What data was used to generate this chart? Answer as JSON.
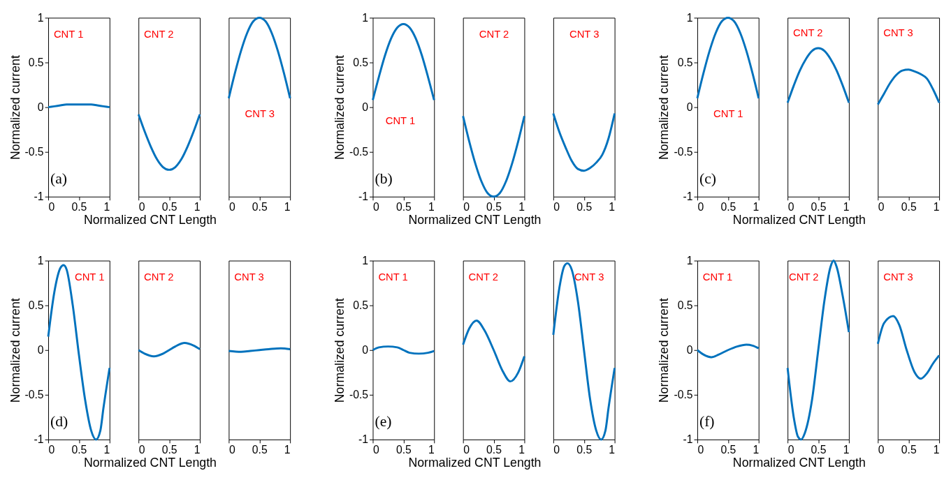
{
  "chart_data": [
    {
      "type": "line",
      "x": [
        0,
        0.1,
        0.2,
        0.3,
        0.4,
        0.5,
        0.6,
        0.7,
        0.8,
        0.9,
        1
      ],
      "values": [
        0,
        0.01,
        0.02,
        0.03,
        0.03,
        0.03,
        0.03,
        0.03,
        0.02,
        0.01,
        0
      ],
      "color": "#0072bd",
      "xlim": [
        0,
        1
      ],
      "ylim": [
        -1,
        1
      ],
      "xticks": [
        0,
        0.5,
        1
      ],
      "yticks": [
        -1,
        -0.5,
        0,
        0.5,
        1
      ],
      "ylabel": "Normalized current",
      "annotations": [
        "CNT 1",
        "(a)"
      ]
    },
    {
      "type": "line",
      "x": [
        0,
        0.1,
        0.2,
        0.3,
        0.4,
        0.5,
        0.6,
        0.7,
        0.8,
        0.9,
        1
      ],
      "values": [
        -0.08,
        -0.27,
        -0.44,
        -0.58,
        -0.67,
        -0.7,
        -0.67,
        -0.58,
        -0.44,
        -0.27,
        -0.08
      ],
      "color": "#0072bd",
      "xlim": [
        0,
        1
      ],
      "ylim": [
        -1,
        1
      ],
      "xticks": [
        0,
        0.5,
        1
      ],
      "tick_labels": "x",
      "xlabel": "Normalized CNT Length",
      "annotations": [
        "CNT 2"
      ]
    },
    {
      "type": "line",
      "x": [
        0,
        0.1,
        0.2,
        0.3,
        0.4,
        0.5,
        0.6,
        0.7,
        0.8,
        0.9,
        1
      ],
      "values": [
        0.1,
        0.38,
        0.63,
        0.83,
        0.96,
        1,
        0.96,
        0.83,
        0.63,
        0.38,
        0.1
      ],
      "color": "#0072bd",
      "xlim": [
        0,
        1
      ],
      "ylim": [
        -1,
        1
      ],
      "xticks": [
        0,
        0.5,
        1
      ],
      "tick_labels": "x",
      "annotations": [
        "CNT 3"
      ]
    },
    {
      "type": "line",
      "x": [
        0,
        0.1,
        0.2,
        0.3,
        0.4,
        0.5,
        0.6,
        0.7,
        0.8,
        0.9,
        1
      ],
      "values": [
        0.08,
        0.34,
        0.58,
        0.77,
        0.89,
        0.93,
        0.89,
        0.77,
        0.58,
        0.34,
        0.08
      ],
      "color": "#0072bd",
      "xlim": [
        0,
        1
      ],
      "ylim": [
        -1,
        1
      ],
      "xticks": [
        0,
        0.5,
        1
      ],
      "yticks": [
        -1,
        -0.5,
        0,
        0.5,
        1
      ],
      "ylabel": "Normalized current",
      "annotations": [
        "CNT 1",
        "(b)"
      ]
    },
    {
      "type": "line",
      "x": [
        0,
        0.1,
        0.2,
        0.3,
        0.4,
        0.5,
        0.6,
        0.7,
        0.8,
        0.9,
        1
      ],
      "values": [
        -0.1,
        -0.38,
        -0.63,
        -0.83,
        -0.96,
        -1,
        -0.96,
        -0.83,
        -0.63,
        -0.38,
        -0.1
      ],
      "color": "#0072bd",
      "xlim": [
        0,
        1
      ],
      "ylim": [
        -1,
        1
      ],
      "xticks": [
        0,
        0.5,
        1
      ],
      "tick_labels": "x",
      "xlabel": "Normalized CNT Length",
      "annotations": [
        "CNT 2"
      ]
    },
    {
      "type": "line",
      "x": [
        0,
        0.1,
        0.2,
        0.3,
        0.4,
        0.5,
        0.6,
        0.7,
        0.8,
        0.9,
        1
      ],
      "values": [
        -0.07,
        -0.28,
        -0.45,
        -0.6,
        -0.69,
        -0.71,
        -0.68,
        -0.62,
        -0.53,
        -0.35,
        -0.07
      ],
      "color": "#0072bd",
      "xlim": [
        0,
        1
      ],
      "ylim": [
        -1,
        1
      ],
      "xticks": [
        0,
        0.5,
        1
      ],
      "tick_labels": "x",
      "annotations": [
        "CNT 3"
      ]
    },
    {
      "type": "line",
      "x": [
        0,
        0.1,
        0.2,
        0.3,
        0.4,
        0.5,
        0.6,
        0.7,
        0.8,
        0.9,
        1
      ],
      "values": [
        0.1,
        0.38,
        0.63,
        0.83,
        0.96,
        1,
        0.96,
        0.83,
        0.63,
        0.38,
        0.1
      ],
      "color": "#0072bd",
      "xlim": [
        0,
        1
      ],
      "ylim": [
        -1,
        1
      ],
      "xticks": [
        0,
        0.5,
        1
      ],
      "yticks": [
        -1,
        -0.5,
        0,
        0.5,
        1
      ],
      "ylabel": "Normalized current",
      "annotations": [
        "CNT 1",
        "(c)"
      ]
    },
    {
      "type": "line",
      "x": [
        0,
        0.1,
        0.2,
        0.3,
        0.4,
        0.5,
        0.6,
        0.7,
        0.8,
        0.9,
        1
      ],
      "values": [
        0.05,
        0.24,
        0.41,
        0.54,
        0.63,
        0.66,
        0.63,
        0.54,
        0.41,
        0.24,
        0.05
      ],
      "color": "#0072bd",
      "xlim": [
        0,
        1
      ],
      "ylim": [
        -1,
        1
      ],
      "xticks": [
        0,
        0.5,
        1
      ],
      "tick_labels": "x",
      "xlabel": "Normalized CNT Length",
      "annotations": [
        "CNT 2"
      ]
    },
    {
      "type": "line",
      "x": [
        0,
        0.1,
        0.2,
        0.3,
        0.4,
        0.5,
        0.6,
        0.7,
        0.8,
        0.9,
        1
      ],
      "values": [
        0.03,
        0.15,
        0.27,
        0.36,
        0.41,
        0.42,
        0.4,
        0.37,
        0.32,
        0.2,
        0.05
      ],
      "color": "#0072bd",
      "xlim": [
        0,
        1
      ],
      "ylim": [
        -1,
        1
      ],
      "xticks": [
        0,
        0.5,
        1
      ],
      "tick_labels": "x",
      "annotations": [
        "CNT 3"
      ]
    },
    {
      "type": "line",
      "x": [
        0,
        0.1,
        0.2,
        0.25,
        0.3,
        0.4,
        0.5,
        0.6,
        0.7,
        0.78,
        0.85,
        0.9,
        1
      ],
      "values": [
        0.15,
        0.65,
        0.92,
        0.95,
        0.9,
        0.5,
        -0.05,
        -0.55,
        -0.9,
        -1,
        -0.9,
        -0.65,
        -0.2
      ],
      "color": "#0072bd",
      "xlim": [
        0,
        1
      ],
      "ylim": [
        -1,
        1
      ],
      "xticks": [
        0,
        0.5,
        1
      ],
      "yticks": [
        -1,
        -0.5,
        0,
        0.5,
        1
      ],
      "ylabel": "Normalized current",
      "annotations": [
        "CNT 1",
        "(d)"
      ]
    },
    {
      "type": "line",
      "x": [
        0,
        0.1,
        0.25,
        0.4,
        0.5,
        0.6,
        0.75,
        0.9,
        1
      ],
      "values": [
        0,
        -0.04,
        -0.07,
        -0.04,
        0,
        0.04,
        0.08,
        0.05,
        0.01
      ],
      "color": "#0072bd",
      "xlim": [
        0,
        1
      ],
      "ylim": [
        -1,
        1
      ],
      "xticks": [
        0,
        0.5,
        1
      ],
      "tick_labels": "x",
      "xlabel": "Normalized CNT Length",
      "annotations": [
        "CNT 2"
      ]
    },
    {
      "type": "line",
      "x": [
        0,
        0.2,
        0.35,
        0.5,
        0.65,
        0.85,
        1
      ],
      "values": [
        -0.01,
        -0.02,
        -0.01,
        0,
        0.01,
        0.02,
        0.01
      ],
      "color": "#0072bd",
      "xlim": [
        0,
        1
      ],
      "ylim": [
        -1,
        1
      ],
      "xticks": [
        0,
        0.5,
        1
      ],
      "tick_labels": "x",
      "annotations": [
        "CNT 3"
      ]
    },
    {
      "type": "line",
      "x": [
        0,
        0.1,
        0.25,
        0.4,
        0.5,
        0.6,
        0.75,
        0.9,
        1
      ],
      "values": [
        0,
        0.03,
        0.04,
        0.03,
        0,
        -0.03,
        -0.04,
        -0.03,
        -0.01
      ],
      "color": "#0072bd",
      "xlim": [
        0,
        1
      ],
      "ylim": [
        -1,
        1
      ],
      "xticks": [
        0,
        0.5,
        1
      ],
      "yticks": [
        -1,
        -0.5,
        0,
        0.5,
        1
      ],
      "ylabel": "Normalized current",
      "annotations": [
        "CNT 1",
        "(e)"
      ]
    },
    {
      "type": "line",
      "x": [
        0,
        0.1,
        0.22,
        0.35,
        0.5,
        0.65,
        0.77,
        0.9,
        1
      ],
      "values": [
        0.06,
        0.24,
        0.33,
        0.22,
        0,
        -0.24,
        -0.35,
        -0.25,
        -0.07
      ],
      "color": "#0072bd",
      "xlim": [
        0,
        1
      ],
      "ylim": [
        -1,
        1
      ],
      "xticks": [
        0,
        0.5,
        1
      ],
      "tick_labels": "x",
      "xlabel": "Normalized CNT Length",
      "annotations": [
        "CNT 2"
      ]
    },
    {
      "type": "line",
      "x": [
        0,
        0.1,
        0.18,
        0.23,
        0.3,
        0.4,
        0.5,
        0.6,
        0.7,
        0.78,
        0.85,
        0.9,
        1
      ],
      "values": [
        0.17,
        0.7,
        0.94,
        0.97,
        0.9,
        0.55,
        0,
        -0.55,
        -0.9,
        -1,
        -0.9,
        -0.65,
        -0.2
      ],
      "color": "#0072bd",
      "xlim": [
        0,
        1
      ],
      "ylim": [
        -1,
        1
      ],
      "xticks": [
        0,
        0.5,
        1
      ],
      "tick_labels": "x",
      "annotations": [
        "CNT 3"
      ]
    },
    {
      "type": "line",
      "x": [
        0,
        0.1,
        0.23,
        0.35,
        0.5,
        0.65,
        0.8,
        0.9,
        1
      ],
      "values": [
        0,
        -0.05,
        -0.08,
        -0.05,
        0,
        0.04,
        0.06,
        0.05,
        0.02
      ],
      "color": "#0072bd",
      "xlim": [
        0,
        1
      ],
      "ylim": [
        -1,
        1
      ],
      "xticks": [
        0,
        0.5,
        1
      ],
      "yticks": [
        -1,
        -0.5,
        0,
        0.5,
        1
      ],
      "ylabel": "Normalized current",
      "annotations": [
        "CNT 1",
        "(f)"
      ]
    },
    {
      "type": "line",
      "x": [
        0,
        0.1,
        0.17,
        0.22,
        0.28,
        0.4,
        0.5,
        0.6,
        0.7,
        0.75,
        0.8,
        0.9,
        1
      ],
      "values": [
        -0.2,
        -0.75,
        -0.97,
        -1,
        -0.93,
        -0.55,
        0,
        0.55,
        0.93,
        1,
        0.93,
        0.6,
        0.2
      ],
      "color": "#0072bd",
      "xlim": [
        0,
        1
      ],
      "ylim": [
        -1,
        1
      ],
      "xticks": [
        0,
        0.5,
        1
      ],
      "tick_labels": "x",
      "xlabel": "Normalized CNT Length",
      "annotations": [
        "CNT 2"
      ]
    },
    {
      "type": "line",
      "x": [
        0,
        0.1,
        0.25,
        0.35,
        0.47,
        0.6,
        0.7,
        0.8,
        0.9,
        1
      ],
      "values": [
        0.07,
        0.3,
        0.38,
        0.28,
        0,
        -0.25,
        -0.32,
        -0.26,
        -0.15,
        -0.06
      ],
      "color": "#0072bd",
      "xlim": [
        0,
        1
      ],
      "ylim": [
        -1,
        1
      ],
      "xticks": [
        0,
        0.5,
        1
      ],
      "tick_labels": "x",
      "annotations": [
        "CNT 3"
      ]
    }
  ]
}
